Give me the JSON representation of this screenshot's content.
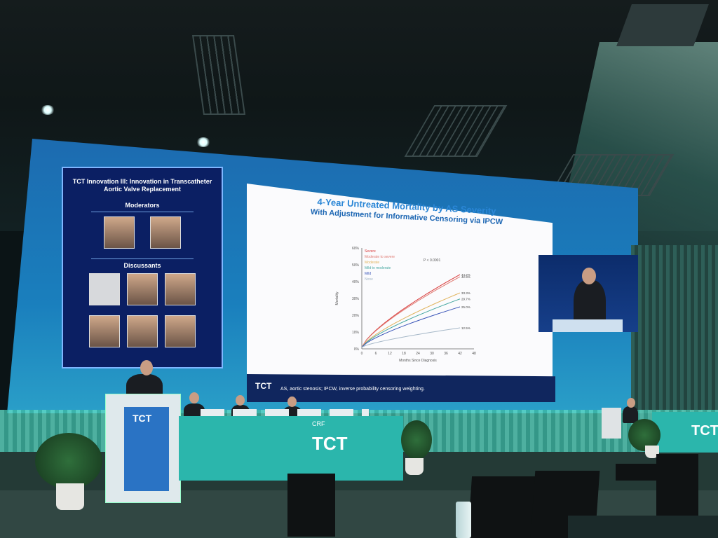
{
  "mod_panel": {
    "title": "TCT Innovation III: Innovation in Transcatheter Aortic Valve Replacement",
    "moderators_heading": "Moderators",
    "discussants_heading": "Discussants"
  },
  "slide": {
    "title": "4-Year Untreated Mortality by AS Severity",
    "subtitle": "With Adjustment for Informative Censoring via IPCW",
    "footer": "AS, aortic stenosis; IPCW, inverse probability censoring weighting.",
    "logo": "TCT"
  },
  "chart_data": {
    "type": "line",
    "ylabel": "Mortality",
    "xlabel": "Months Since Diagnosis",
    "y_ticks": [
      "0%",
      "10%",
      "20%",
      "30%",
      "40%",
      "50%",
      "60%"
    ],
    "x_ticks": [
      "0",
      "6",
      "12",
      "18",
      "24",
      "30",
      "36",
      "42",
      "48"
    ],
    "xlim": [
      0,
      48
    ],
    "ylim": [
      0,
      60
    ],
    "series": [
      {
        "name": "Severe",
        "color": "#d93a3a",
        "end": 44.2,
        "label": "44.2%"
      },
      {
        "name": "Moderate to severe",
        "color": "#e07a72",
        "end": 42.9,
        "label": "42.9%"
      },
      {
        "name": "Moderate",
        "color": "#e0b35c",
        "end": 33.3,
        "label": "33.3%"
      },
      {
        "name": "Mild to moderate",
        "color": "#46a7a0",
        "end": 29.7,
        "label": "29.7%"
      },
      {
        "name": "Mild",
        "color": "#3a55b8",
        "end": 25.0,
        "label": "25.0%"
      },
      {
        "name": "None",
        "color": "#a6b8c8",
        "end": 12.5,
        "label": "12.5%"
      }
    ],
    "pvalue": "P < 0.0001"
  },
  "branding": {
    "table_crf": "CRF",
    "table_logo": "TCT",
    "podium_logo": "TCT",
    "right_logo": "TCT"
  }
}
